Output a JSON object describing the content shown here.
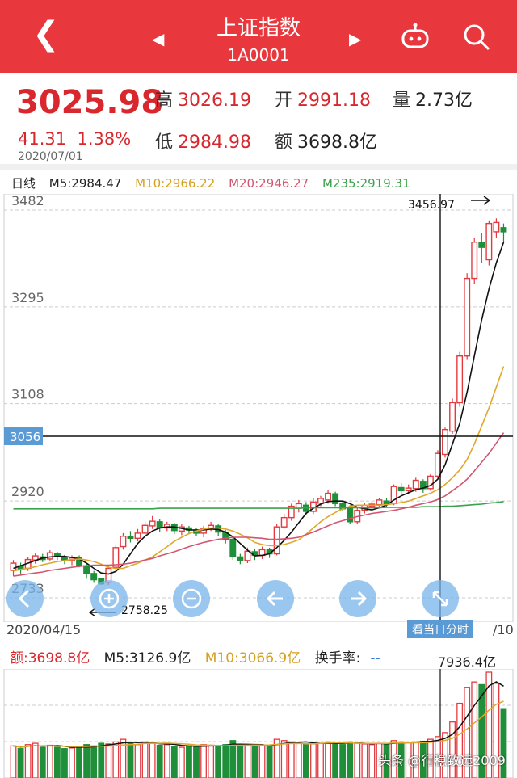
{
  "header": {
    "title": "上证指数",
    "code": "1A0001"
  },
  "quote": {
    "price": "3025.98",
    "change": "41.31",
    "change_pct": "1.38%",
    "date": "2020/07/01",
    "high_label": "高",
    "high": "3026.19",
    "open_label": "开",
    "open": "2991.18",
    "vol_label": "量",
    "vol": "2.73亿",
    "low_label": "低",
    "low": "2984.98",
    "amt_label": "额",
    "amt": "3698.8亿"
  },
  "ma_legend": {
    "period": "日线",
    "m5": "M5:2984.47",
    "m10": "M10:2966.22",
    "m20": "M20:2946.27",
    "m235": "M235:2919.31"
  },
  "chart": {
    "y_ticks": [
      "3482",
      "3295",
      "3108",
      "2920",
      "2733"
    ],
    "crosshair_value": "3056",
    "high_annot": "3456.97",
    "low_annot": "2758.25",
    "start_date": "2020/04/15",
    "end_date_partial": "/10",
    "intraday_button": "看当日分时",
    "colors": {
      "up": "#e23a3f",
      "down": "#1f8f3a",
      "m5": "#111111",
      "m10": "#e0a82a",
      "m20": "#d4556f",
      "m235": "#3aa24a"
    }
  },
  "volume": {
    "amt": "额:3698.8亿",
    "m5": "M5:3126.9亿",
    "m10": "M10:3066.9亿",
    "turnover": "换手率:",
    "turnover_value": "--",
    "max_label": "7936.4亿"
  },
  "watermark": "头条 @行稳致远2009",
  "chart_data": {
    "type": "candlestick",
    "x_start": "2020/04/15",
    "y_ticks": [
      3482,
      3295,
      3108,
      2920,
      2733
    ],
    "ylim": [
      2733,
      3482
    ],
    "candles": [
      [
        2786,
        2800,
        2775,
        2806
      ],
      [
        2795,
        2789,
        2780,
        2801
      ],
      [
        2790,
        2807,
        2785,
        2812
      ],
      [
        2806,
        2814,
        2799,
        2820
      ],
      [
        2812,
        2807,
        2802,
        2818
      ],
      [
        2808,
        2820,
        2805,
        2825
      ],
      [
        2818,
        2813,
        2806,
        2822
      ],
      [
        2812,
        2805,
        2798,
        2816
      ],
      [
        2805,
        2810,
        2796,
        2815
      ],
      [
        2810,
        2795,
        2792,
        2815
      ],
      [
        2795,
        2780,
        2770,
        2800
      ],
      [
        2780,
        2768,
        2762,
        2785
      ],
      [
        2770,
        2760,
        2758,
        2772
      ],
      [
        2763,
        2790,
        2758,
        2794
      ],
      [
        2792,
        2830,
        2788,
        2834
      ],
      [
        2832,
        2852,
        2826,
        2858
      ],
      [
        2852,
        2848,
        2840,
        2862
      ],
      [
        2848,
        2858,
        2842,
        2866
      ],
      [
        2858,
        2873,
        2852,
        2880
      ],
      [
        2872,
        2881,
        2866,
        2891
      ],
      [
        2880,
        2868,
        2860,
        2885
      ],
      [
        2868,
        2875,
        2862,
        2880
      ],
      [
        2875,
        2863,
        2856,
        2878
      ],
      [
        2862,
        2870,
        2854,
        2876
      ],
      [
        2868,
        2864,
        2858,
        2872
      ],
      [
        2864,
        2858,
        2852,
        2868
      ],
      [
        2858,
        2866,
        2850,
        2872
      ],
      [
        2866,
        2873,
        2862,
        2880
      ],
      [
        2872,
        2860,
        2852,
        2876
      ],
      [
        2860,
        2846,
        2838,
        2864
      ],
      [
        2846,
        2812,
        2806,
        2850
      ],
      [
        2812,
        2805,
        2798,
        2818
      ],
      [
        2805,
        2823,
        2800,
        2830
      ],
      [
        2822,
        2815,
        2806,
        2828
      ],
      [
        2815,
        2826,
        2808,
        2832
      ],
      [
        2826,
        2818,
        2810,
        2830
      ],
      [
        2818,
        2870,
        2815,
        2875
      ],
      [
        2870,
        2888,
        2866,
        2895
      ],
      [
        2888,
        2910,
        2882,
        2915
      ],
      [
        2906,
        2915,
        2898,
        2922
      ],
      [
        2912,
        2900,
        2892,
        2918
      ],
      [
        2900,
        2918,
        2895,
        2925
      ],
      [
        2916,
        2925,
        2910,
        2930
      ],
      [
        2922,
        2935,
        2915,
        2941
      ],
      [
        2934,
        2915,
        2910,
        2938
      ],
      [
        2916,
        2905,
        2900,
        2920
      ],
      [
        2906,
        2880,
        2875,
        2912
      ],
      [
        2880,
        2902,
        2876,
        2908
      ],
      [
        2902,
        2912,
        2896,
        2916
      ],
      [
        2910,
        2914,
        2902,
        2920
      ],
      [
        2913,
        2922,
        2906,
        2926
      ],
      [
        2920,
        2915,
        2908,
        2926
      ],
      [
        2915,
        2948,
        2912,
        2952
      ],
      [
        2946,
        2940,
        2932,
        2955
      ],
      [
        2940,
        2945,
        2933,
        2952
      ],
      [
        2944,
        2960,
        2938,
        2965
      ],
      [
        2958,
        2944,
        2936,
        2962
      ],
      [
        2944,
        2968,
        2940,
        2972
      ],
      [
        2968,
        3012,
        2962,
        3018
      ],
      [
        3010,
        3058,
        3004,
        3062
      ],
      [
        3055,
        3110,
        3050,
        3118
      ],
      [
        3110,
        3200,
        3102,
        3208
      ],
      [
        3200,
        3350,
        3194,
        3360
      ],
      [
        3350,
        3420,
        3340,
        3428
      ],
      [
        3420,
        3410,
        3380,
        3438
      ],
      [
        3386,
        3456,
        3375,
        3462
      ],
      [
        3440,
        3458,
        3428,
        3466
      ],
      [
        3448,
        3440,
        3420,
        3456
      ]
    ],
    "series": [
      {
        "name": "M5",
        "values": [
          2790,
          2795,
          2800,
          2805,
          2810,
          2812,
          2813,
          2813,
          2811,
          2808,
          2800,
          2790,
          2781,
          2779,
          2784,
          2798,
          2818,
          2838,
          2852,
          2862,
          2868,
          2870,
          2870,
          2867,
          2864,
          2864,
          2864,
          2866,
          2865,
          2860,
          2851,
          2838,
          2825,
          2814,
          2815,
          2818,
          2830,
          2844,
          2860,
          2878,
          2896,
          2906,
          2914,
          2919,
          2920,
          2920,
          2915,
          2908,
          2905,
          2903,
          2907,
          2912,
          2922,
          2930,
          2936,
          2942,
          2945,
          2950,
          2962,
          2990,
          3030,
          3070,
          3130,
          3200,
          3270,
          3330,
          3380,
          3420
        ]
      },
      {
        "name": "M10",
        "values": [
          2785,
          2788,
          2790,
          2793,
          2797,
          2800,
          2803,
          2805,
          2807,
          2808,
          2806,
          2803,
          2798,
          2792,
          2790,
          2790,
          2795,
          2800,
          2806,
          2812,
          2822,
          2832,
          2842,
          2850,
          2857,
          2862,
          2866,
          2868,
          2868,
          2866,
          2862,
          2856,
          2849,
          2840,
          2836,
          2834,
          2834,
          2836,
          2840,
          2845,
          2856,
          2868,
          2880,
          2890,
          2898,
          2905,
          2910,
          2912,
          2912,
          2912,
          2912,
          2913,
          2915,
          2917,
          2920,
          2925,
          2930,
          2935,
          2942,
          2952,
          2965,
          2980,
          3000,
          3030,
          3065,
          3100,
          3140,
          3180
        ]
      },
      {
        "name": "M20",
        "values": [
          2775,
          2777,
          2779,
          2781,
          2783,
          2786,
          2788,
          2790,
          2792,
          2794,
          2795,
          2796,
          2796,
          2796,
          2797,
          2798,
          2800,
          2803,
          2806,
          2809,
          2814,
          2818,
          2822,
          2827,
          2832,
          2836,
          2840,
          2843,
          2846,
          2848,
          2850,
          2850,
          2850,
          2849,
          2848,
          2846,
          2846,
          2847,
          2848,
          2850,
          2855,
          2860,
          2866,
          2872,
          2878,
          2882,
          2886,
          2890,
          2893,
          2896,
          2898,
          2900,
          2902,
          2905,
          2908,
          2912,
          2915,
          2918,
          2923,
          2930,
          2940,
          2950,
          2962,
          2978,
          2995,
          3012,
          3032,
          3052
        ]
      },
      {
        "name": "M235",
        "values": [
          2905,
          2905,
          2905,
          2905,
          2905,
          2905,
          2905,
          2905,
          2905,
          2905,
          2905,
          2905,
          2905,
          2905,
          2905,
          2905,
          2905,
          2905,
          2905,
          2905,
          2906,
          2906,
          2906,
          2906,
          2906,
          2906,
          2906,
          2906,
          2906,
          2906,
          2906,
          2906,
          2906,
          2906,
          2906,
          2906,
          2906,
          2906,
          2906,
          2906,
          2907,
          2907,
          2907,
          2907,
          2907,
          2907,
          2907,
          2907,
          2907,
          2907,
          2907,
          2908,
          2908,
          2908,
          2908,
          2908,
          2909,
          2909,
          2909,
          2910,
          2910,
          2911,
          2912,
          2913,
          2914,
          2916,
          2917,
          2919
        ]
      }
    ],
    "volume": {
      "max": 7936.4,
      "values": [
        2400,
        2200,
        2500,
        2600,
        2300,
        2450,
        2300,
        2200,
        2250,
        2350,
        2500,
        2400,
        2600,
        2550,
        2700,
        2900,
        2600,
        2500,
        2700,
        2600,
        2450,
        2500,
        2350,
        2300,
        2400,
        2350,
        2500,
        2450,
        2400,
        2500,
        2800,
        2500,
        2400,
        2350,
        2450,
        2400,
        2900,
        2800,
        2700,
        2600,
        2500,
        2550,
        2600,
        2700,
        2650,
        2500,
        2700,
        2600,
        2550,
        2500,
        2600,
        2550,
        2800,
        2700,
        2650,
        2700,
        2750,
        2900,
        3100,
        3400,
        4200,
        5600,
        6800,
        7200,
        7000,
        7936,
        7100,
        5200
      ]
    }
  }
}
